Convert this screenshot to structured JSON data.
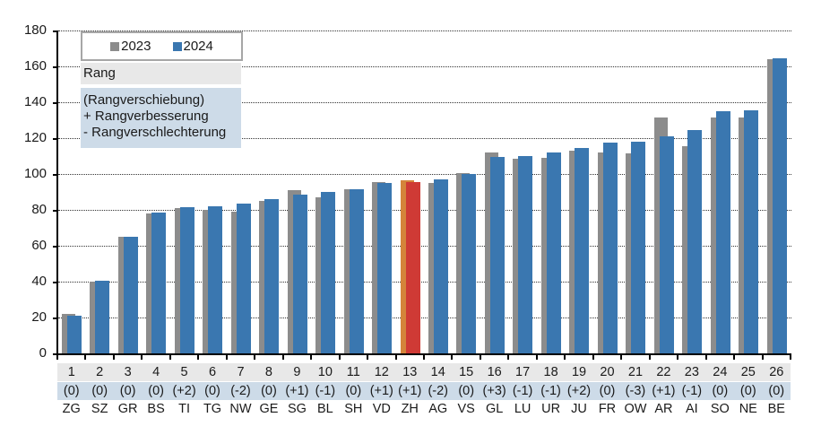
{
  "chart_data": {
    "type": "bar",
    "title": "",
    "xlabel": "",
    "ylabel": "",
    "ylim": [
      0,
      180
    ],
    "yticks": [
      0,
      20,
      40,
      60,
      80,
      100,
      120,
      140,
      160,
      180
    ],
    "grid": true,
    "legend_position": "top-left",
    "categories": [
      "ZG",
      "SZ",
      "GR",
      "BS",
      "TI",
      "TG",
      "NW",
      "GE",
      "SG",
      "BL",
      "SH",
      "VD",
      "ZH",
      "AG",
      "VS",
      "GL",
      "LU",
      "UR",
      "JU",
      "FR",
      "OW",
      "AR",
      "AI",
      "SO",
      "NE",
      "BE"
    ],
    "ranks": [
      "1",
      "2",
      "3",
      "4",
      "5",
      "6",
      "7",
      "8",
      "9",
      "10",
      "11",
      "12",
      "13",
      "14",
      "15",
      "16",
      "17",
      "18",
      "19",
      "20",
      "21",
      "22",
      "23",
      "24",
      "25",
      "26"
    ],
    "rank_shifts": [
      "(0)",
      "(0)",
      "(0)",
      "(0)",
      "(+2)",
      "(0)",
      "(-2)",
      "(0)",
      "(+1)",
      "(-1)",
      "(0)",
      "(+1)",
      "(+1)",
      "(-2)",
      "(0)",
      "(+3)",
      "(-1)",
      "(-1)",
      "(+2)",
      "(0)",
      "(-3)",
      "(+1)",
      "(-1)",
      "(0)",
      "(0)",
      "(0)"
    ],
    "series": [
      {
        "name": "2023",
        "color": "#8c8c8c",
        "values": [
          22,
          40,
          65,
          78,
          81,
          80,
          79,
          85,
          91,
          87,
          91.5,
          95.5,
          96.5,
          95,
          100.5,
          112,
          108.5,
          109,
          113,
          112,
          111.5,
          131.5,
          115.5,
          131.5,
          131.5,
          164
        ]
      },
      {
        "name": "2024",
        "color": "#3a77b0",
        "values": [
          21,
          40.5,
          65,
          78.5,
          81.5,
          82,
          83.5,
          86,
          88.5,
          90,
          91.5,
          95,
          95.5,
          97,
          100,
          109.5,
          110,
          112,
          114.5,
          117.5,
          118,
          121,
          124.5,
          135,
          135.5,
          164.5
        ]
      }
    ],
    "highlight": {
      "category": "ZH",
      "color_2023": "#d4843a",
      "color_2024": "#cf3a35"
    }
  },
  "legend": {
    "items": [
      {
        "label": "2023",
        "color": "#8c8c8c"
      },
      {
        "label": "2024",
        "color": "#3a77b0"
      }
    ]
  },
  "notes": {
    "rank_label": "Rang",
    "shift_line1": "(Rangverschiebung)",
    "shift_line2": "+ Rangverbesserung",
    "shift_line3": "- Rangverschlechterung"
  },
  "colors": {
    "rank_row_bg": "#e8e8e8",
    "shift_row_bg": "#cddbe8"
  }
}
